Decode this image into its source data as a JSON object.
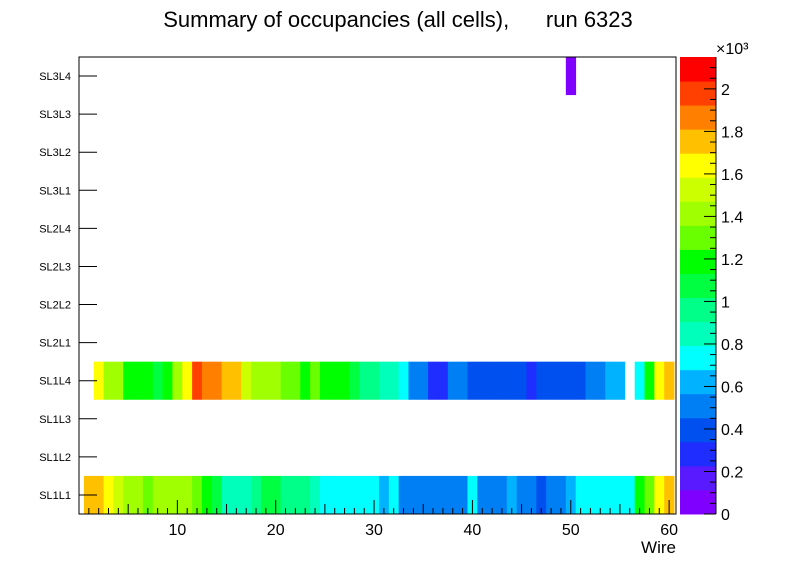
{
  "chart_data": {
    "type": "heatmap",
    "title": "Summary of occupancies (all cells),      run 6323",
    "xlabel": "Wire",
    "ylabel": "",
    "xlim": [
      0,
      60.7
    ],
    "x_ticks": [
      10,
      20,
      30,
      40,
      50,
      60
    ],
    "y_categories": [
      "SL1L1",
      "SL1L2",
      "SL1L3",
      "SL1L4",
      "SL2L1",
      "SL2L2",
      "SL2L3",
      "SL2L4",
      "SL3L1",
      "SL3L2",
      "SL3L3",
      "SL3L4"
    ],
    "z_multiplier": "×10³",
    "z_range": [
      0,
      2150
    ],
    "z_ticks": [
      0,
      0.2,
      0.4,
      0.6,
      0.8,
      1,
      1.2,
      1.4,
      1.6,
      1.8,
      2
    ],
    "palette": [
      "#8000ff",
      "#5a1aff",
      "#1f2dff",
      "#0050f0",
      "#007ff5",
      "#00b2ff",
      "#00ffff",
      "#00ffbb",
      "#00ff88",
      "#00ff40",
      "#00ff00",
      "#6aff00",
      "#a0ff00",
      "#ccff00",
      "#ffff00",
      "#ffc000",
      "#ff8000",
      "#ff4000",
      "#ff0000"
    ],
    "rows": [
      {
        "layer": "SL1L1",
        "values": [
          1790,
          1790,
          1650,
          1570,
          1400,
          1400,
          1300,
          1400,
          1400,
          1400,
          1400,
          1300,
          1200,
          1100,
          900,
          900,
          900,
          1000,
          1100,
          1100,
          1000,
          1000,
          1000,
          800,
          700,
          700,
          700,
          700,
          700,
          700,
          600,
          700,
          500,
          500,
          500,
          500,
          500,
          500,
          500,
          700,
          500,
          500,
          500,
          600,
          500,
          500,
          400,
          500,
          500,
          600,
          700,
          700,
          700,
          700,
          700,
          700,
          1200,
          1300,
          1600,
          1800
        ]
      },
      {
        "layer": "SL1L4",
        "values": [
          null,
          1600,
          1400,
          1400,
          1200,
          1200,
          1200,
          1100,
          1200,
          1400,
          1600,
          2000,
          1900,
          1900,
          1700,
          1800,
          1500,
          1400,
          1400,
          1400,
          1300,
          1300,
          1200,
          1300,
          1200,
          1200,
          1200,
          1100,
          1000,
          1000,
          900,
          900,
          700,
          500,
          500,
          300,
          300,
          500,
          500,
          400,
          400,
          400,
          400,
          400,
          400,
          250,
          400,
          400,
          400,
          400,
          400,
          500,
          500,
          600,
          600,
          null,
          700,
          1200,
          1600,
          1800
        ]
      },
      {
        "layer": "SL3L4",
        "values": [
          null,
          null,
          null,
          null,
          null,
          null,
          null,
          null,
          null,
          null,
          null,
          null,
          null,
          null,
          null,
          null,
          null,
          null,
          null,
          null,
          null,
          null,
          null,
          null,
          null,
          null,
          null,
          null,
          null,
          null,
          null,
          null,
          null,
          null,
          null,
          null,
          null,
          null,
          null,
          null,
          null,
          null,
          null,
          null,
          null,
          null,
          null,
          null,
          null,
          60,
          null,
          null,
          null,
          null,
          null,
          null,
          null,
          null,
          null,
          null
        ]
      }
    ],
    "grid": false,
    "legend": "colorbar-right"
  }
}
